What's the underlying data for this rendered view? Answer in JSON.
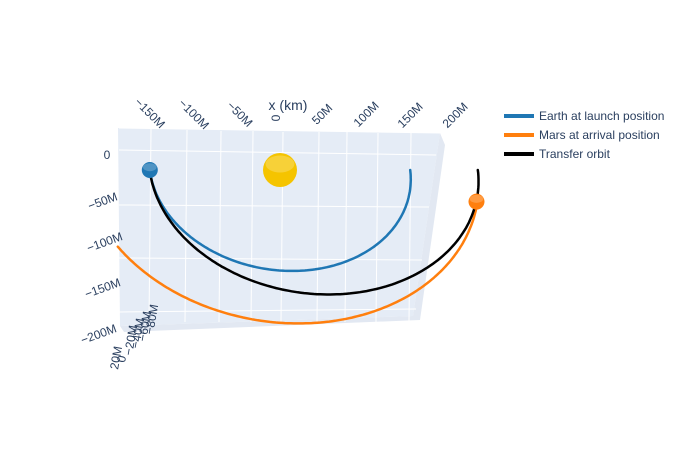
{
  "chart_data": {
    "type": "scatter3d",
    "axes": {
      "x": {
        "title": "x (km)",
        "ticks": [
          "−150M",
          "−100M",
          "−50M",
          "0",
          "50M",
          "100M",
          "150M",
          "200M"
        ]
      },
      "y": {
        "title": "",
        "ticks": [
          "0",
          "−50M",
          "−100M",
          "−150M",
          "−200M"
        ]
      },
      "z": {
        "title": "",
        "ticks": [
          "20M",
          "0",
          "−20M",
          "−40M",
          "−60M",
          "−80M"
        ]
      }
    },
    "legend_position": "top-right",
    "series": [
      {
        "name": "Earth at launch position",
        "color": "#1f77b4",
        "kind": "orbit",
        "center_x": 0,
        "center_y": 0,
        "radius": 150000000,
        "start_deg": 0,
        "end_deg": -180
      },
      {
        "name": "Mars at arrival position",
        "color": "#ff7f0e",
        "kind": "orbit",
        "center_x": 0,
        "center_y": 0,
        "radius": 228000000,
        "start_deg": -12,
        "end_deg": -150
      },
      {
        "name": "Transfer orbit",
        "color": "#000000",
        "kind": "transfer",
        "a": 189000000,
        "e": 0.206,
        "start_deg": 180,
        "end_deg": 360
      }
    ],
    "bodies": [
      {
        "name": "Sun",
        "color": "#f5c400",
        "x": 0,
        "y": 0,
        "size": "large"
      },
      {
        "name": "Earth",
        "color": "#1f77b4",
        "x": -150000000,
        "y": 0,
        "size": "small"
      },
      {
        "name": "Mars",
        "color": "#ff7f0e",
        "x": 222000000,
        "y": -47000000,
        "size": "small"
      }
    ]
  },
  "legend": {
    "items": [
      {
        "label": "Earth at launch position",
        "color": "#1f77b4"
      },
      {
        "label": "Mars at arrival position",
        "color": "#ff7f0e"
      },
      {
        "label": "Transfer orbit",
        "color": "#000000"
      }
    ]
  }
}
